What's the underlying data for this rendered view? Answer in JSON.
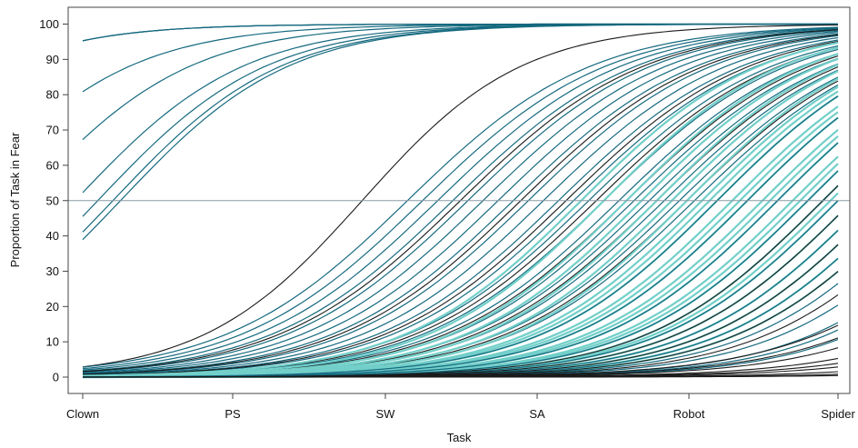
{
  "chart_data": {
    "type": "line",
    "xlabel": "Task",
    "ylabel": "Proportion of Task in Fear",
    "categories": [
      "Clown",
      "PS",
      "SW",
      "SA",
      "Robot",
      "Spider"
    ],
    "ylim": [
      0,
      100
    ],
    "yticks": [
      0,
      10,
      20,
      30,
      40,
      50,
      60,
      70,
      80,
      90,
      100
    ],
    "reference_line": {
      "y": 50,
      "color": "#8a9aa6"
    },
    "grid": false,
    "legend": "none",
    "colors": {
      "dark": "#1b1b1b",
      "teal": "#15697f",
      "light": "#72cfc9",
      "axis": "#444444"
    },
    "curve_model": "logistic (midpoint in task units, slope per task)",
    "curve_groups": [
      {
        "color": "teal",
        "midpoints": [
          -1.5,
          -1.5,
          -1.5
        ],
        "slope": 2.0
      },
      {
        "color": "teal",
        "midpoints": [
          -0.8,
          -0.4,
          -0.05,
          0.1,
          0.2,
          0.25
        ],
        "slope": 1.8
      },
      {
        "color": "dark",
        "midpoints": [
          1.85
        ],
        "slope": 1.9
      },
      {
        "color": "teal",
        "midpoints": [
          2.15,
          2.25,
          2.35,
          2.45,
          2.55,
          2.65,
          2.75,
          2.85,
          2.95,
          3.05,
          3.15,
          3.25,
          3.35,
          3.45,
          3.55,
          3.65,
          3.75,
          3.85,
          3.95,
          4.05
        ],
        "slope": 1.65
      },
      {
        "color": "dark",
        "midpoints": [
          2.5,
          2.9,
          3.2,
          3.4,
          3.6,
          3.8,
          4.0
        ],
        "slope": 1.65
      },
      {
        "color": "light",
        "midpoints": [
          3.3,
          3.45,
          3.6,
          3.7,
          3.8,
          3.9,
          4.0,
          4.1,
          4.15,
          4.2,
          4.3,
          4.35,
          4.4,
          4.5,
          4.55,
          4.6,
          4.7,
          4.75,
          4.8,
          4.9,
          4.95,
          5.0,
          5.1,
          5.2,
          5.3,
          5.4,
          5.5
        ],
        "slope": 1.7
      },
      {
        "color": "teal",
        "midpoints": [
          4.2,
          4.4,
          4.6,
          4.8,
          5.0,
          5.2,
          5.4,
          5.6,
          5.8,
          6.0,
          6.1,
          6.25
        ],
        "slope": 1.7
      },
      {
        "color": "dark",
        "midpoints": [
          4.9,
          5.1,
          5.3,
          5.5,
          5.7
        ],
        "slope": 1.7
      },
      {
        "color": "dark",
        "midpoints": [
          6.1,
          6.3,
          6.5,
          6.8,
          7.0,
          7.2
        ],
        "slope": 1.6
      },
      {
        "color": "dark",
        "midpoints": [
          7.6,
          8.0,
          8.4
        ],
        "slope": 1.6
      }
    ]
  }
}
